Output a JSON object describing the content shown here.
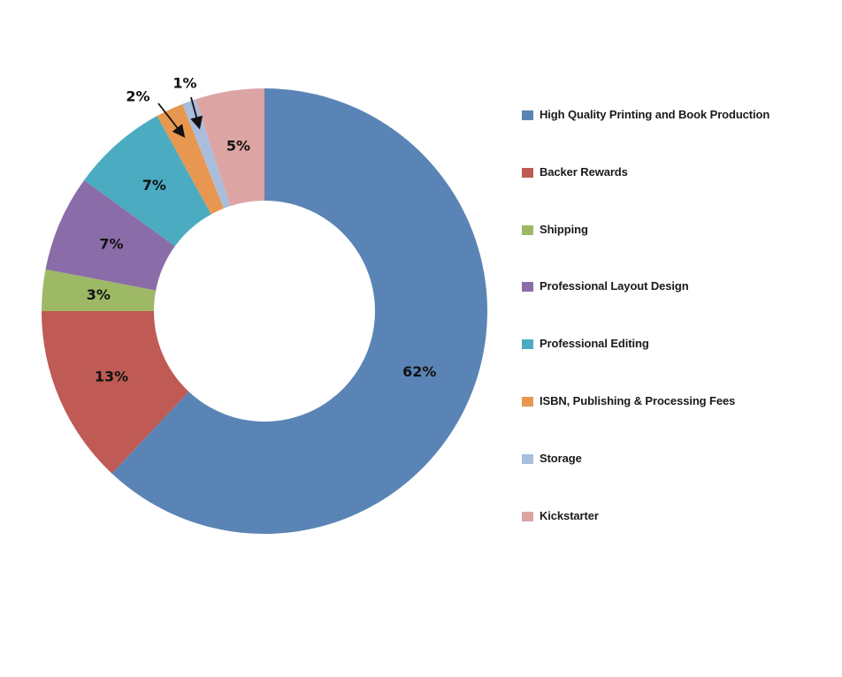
{
  "chart_data": {
    "type": "pie",
    "variant": "donut",
    "start_angle_deg": 0,
    "direction": "clockwise",
    "categories": [
      "High Quality Printing and Book Production",
      "Backer Rewards",
      "Shipping",
      "Professional Layout Design",
      "Professional Editing",
      "ISBN, Publishing & Processing Fees",
      "Storage",
      "Kickstarter"
    ],
    "values": [
      62,
      13,
      3,
      7,
      7,
      2,
      1,
      5
    ],
    "data_labels": [
      "62%",
      "13%",
      "3%",
      "7%",
      "7%",
      "2%",
      "1%",
      "5%"
    ],
    "colors": [
      "#5A84B5",
      "#BF5A54",
      "#9EB966",
      "#8A6DA8",
      "#4BABC1",
      "#E7974F",
      "#A9BEDD",
      "#DDA4A4"
    ],
    "callout_labels": [
      "2%",
      "1%"
    ],
    "legend_position": "right",
    "title": ""
  }
}
